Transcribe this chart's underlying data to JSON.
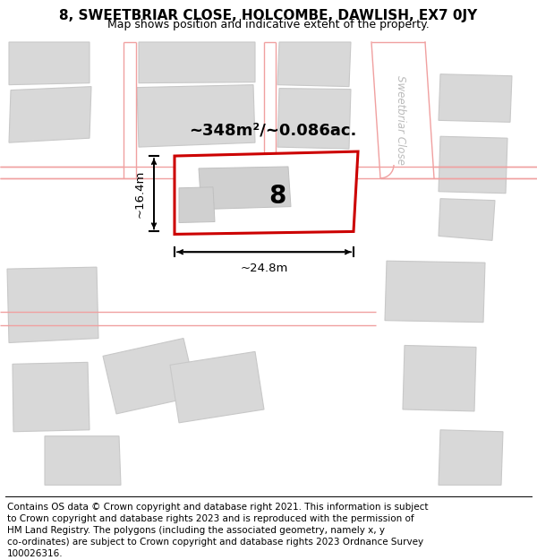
{
  "title": "8, SWEETBRIAR CLOSE, HOLCOMBE, DAWLISH, EX7 0JY",
  "subtitle": "Map shows position and indicative extent of the property.",
  "footer_lines": [
    "Contains OS data © Crown copyright and database right 2021. This information is subject",
    "to Crown copyright and database rights 2023 and is reproduced with the permission of",
    "HM Land Registry. The polygons (including the associated geometry, namely x, y",
    "co-ordinates) are subject to Crown copyright and database rights 2023 Ordnance Survey",
    "100026316."
  ],
  "area_label": "~348m²/~0.086ac.",
  "number_label": "8",
  "width_label": "~24.8m",
  "height_label": "~16.4m",
  "title_fontsize": 11,
  "subtitle_fontsize": 9,
  "footer_fontsize": 7.5,
  "red_color": "#cc0000",
  "light_red": "#f0a0a0",
  "gray_fill": "#d8d8d8",
  "map_bg": "#f5f5f5",
  "street_label": "Sweetbriar Close",
  "street_label_color": "#bbbbbb"
}
